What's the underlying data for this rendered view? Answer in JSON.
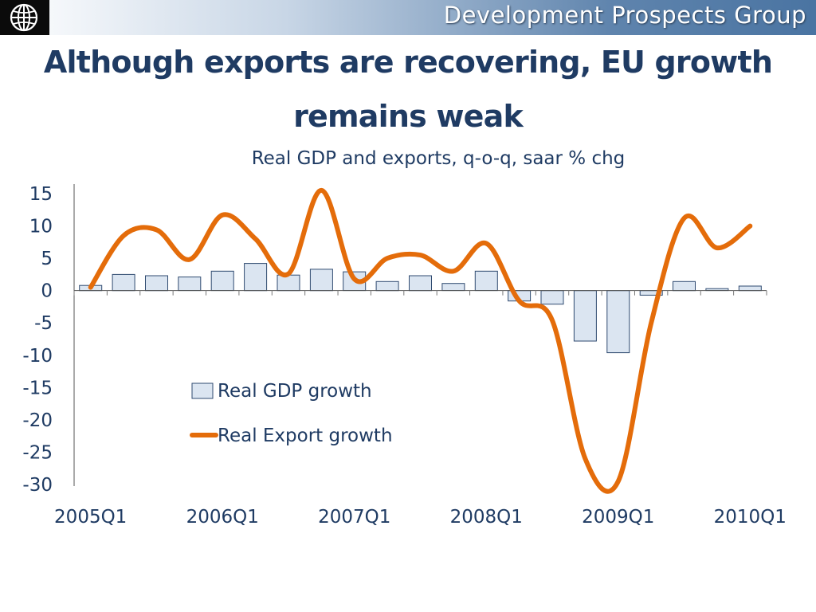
{
  "header": {
    "group_name": "Development Prospects Group",
    "logo_icon": "world-bank-globe-icon"
  },
  "slide": {
    "title_line1": "Although exports are recovering, EU growth",
    "title_line2": "remains weak"
  },
  "colors": {
    "title": "#1f3b63",
    "bar_fill": "#dbe5f1",
    "bar_stroke": "#2f4a70",
    "line": "#e46c0a"
  },
  "chart_data": {
    "type": "bar",
    "title": "Real GDP and exports, q-o-q, saar % chg",
    "xlabel": "",
    "ylabel": "",
    "ylim": [
      -30,
      15
    ],
    "yticks": [
      15,
      10,
      5,
      0,
      -5,
      -10,
      -15,
      -20,
      -25,
      -30
    ],
    "categories": [
      "2005Q1",
      "2005Q2",
      "2005Q3",
      "2005Q4",
      "2006Q1",
      "2006Q2",
      "2006Q3",
      "2006Q4",
      "2007Q1",
      "2007Q2",
      "2007Q3",
      "2007Q4",
      "2008Q1",
      "2008Q2",
      "2008Q3",
      "2008Q4",
      "2009Q1",
      "2009Q2",
      "2009Q3",
      "2009Q4",
      "2010Q1"
    ],
    "xtick_labels": [
      {
        "index": 0,
        "label": "2005Q1"
      },
      {
        "index": 4,
        "label": "2006Q1"
      },
      {
        "index": 8,
        "label": "2007Q1"
      },
      {
        "index": 12,
        "label": "2008Q1"
      },
      {
        "index": 16,
        "label": "2009Q1"
      },
      {
        "index": 20,
        "label": "2010Q1"
      }
    ],
    "legend": "left-lower",
    "grid": false,
    "series": [
      {
        "name": "Real GDP growth",
        "type": "bar",
        "values": [
          0.8,
          2.5,
          2.3,
          2.1,
          3.0,
          4.2,
          2.4,
          3.3,
          2.9,
          1.4,
          2.3,
          1.1,
          3.0,
          -1.6,
          -2.1,
          -7.8,
          -9.6,
          -0.7,
          1.4,
          0.3,
          0.7
        ]
      },
      {
        "name": "Real Export growth",
        "type": "line",
        "smooth": true,
        "values": [
          0.5,
          8.5,
          9.4,
          4.8,
          11.7,
          8.0,
          2.6,
          15.5,
          1.8,
          5.0,
          5.5,
          3.0,
          7.3,
          -1.6,
          -4.6,
          -26.0,
          -29.5,
          -5.0,
          11.2,
          6.6,
          10.0
        ]
      }
    ]
  }
}
